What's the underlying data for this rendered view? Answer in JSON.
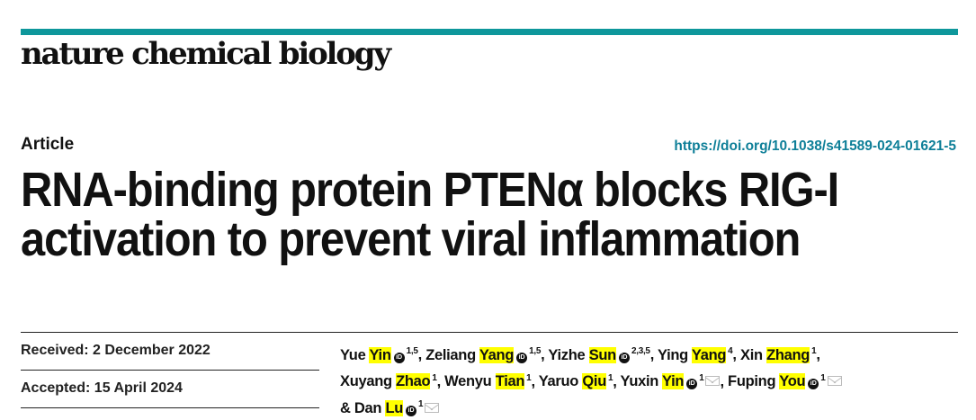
{
  "journal": {
    "name": "nature chemical biology",
    "accent": "#0e979b"
  },
  "article": {
    "type": "Article",
    "doi": "https://doi.org/10.1038/s41589-024-01621-5",
    "title_lines": [
      "RNA-binding protein PTENα blocks RIG-I",
      "activation to prevent viral inflammation"
    ],
    "received": "Received: 2 December 2022",
    "accepted": "Accepted: 15 April 2024"
  },
  "highlight_color": "#ffff00",
  "authors": [
    {
      "first": "Yue",
      "last": "Yin",
      "orcid": true,
      "sup": "1,5",
      "mail": false,
      "sep": ", "
    },
    {
      "first": "Zeliang",
      "last": "Yang",
      "orcid": true,
      "sup": "1,5",
      "mail": false,
      "sep": ", "
    },
    {
      "first": "Yizhe",
      "last": "Sun",
      "orcid": true,
      "sup": "2,3,5",
      "mail": false,
      "sep": ", "
    },
    {
      "first": "Ying",
      "last": "Yang",
      "orcid": false,
      "sup": "4",
      "mail": false,
      "sep": ", "
    },
    {
      "first": "Xin",
      "last": "Zhang",
      "orcid": false,
      "sup": "1",
      "mail": false,
      "sep": ", "
    },
    {
      "first": "Xuyang",
      "last": "Zhao",
      "orcid": false,
      "sup": "1",
      "mail": false,
      "sep": ", "
    },
    {
      "first": "Wenyu",
      "last": "Tian",
      "orcid": false,
      "sup": "1",
      "mail": false,
      "sep": ", "
    },
    {
      "first": "Yaruo",
      "last": "Qiu",
      "orcid": false,
      "sup": "1",
      "mail": false,
      "sep": ", "
    },
    {
      "first": "Yuxin",
      "last": "Yin",
      "orcid": true,
      "sup": "1",
      "mail": true,
      "sep": ", "
    },
    {
      "first": "Fuping",
      "last": "You",
      "orcid": true,
      "sup": "1",
      "mail": true,
      "sep": " "
    },
    {
      "first": "& Dan",
      "last": "Lu",
      "orcid": true,
      "sup": "1",
      "mail": true,
      "sep": ""
    }
  ]
}
